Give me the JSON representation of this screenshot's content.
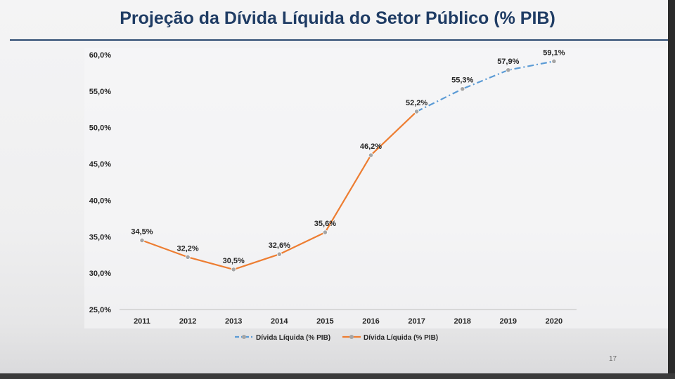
{
  "page": {
    "title": "Projeção da Dívida Líquida do Setor Público (% PIB)",
    "page_number": "17"
  },
  "colors": {
    "projection": "#5b9bd5",
    "actual": "#ed7d31",
    "marker": "#a5a5a5",
    "title": "#1f3c64"
  },
  "chart_data": {
    "type": "line",
    "title": "Projeção da Dívida Líquida do Setor Público (% PIB)",
    "xlabel": "",
    "ylabel": "",
    "ylim": [
      25,
      60
    ],
    "y_ticks": [
      25,
      30,
      35,
      40,
      45,
      50,
      55,
      60
    ],
    "y_tick_labels": [
      "25,0%",
      "30,0%",
      "35,0%",
      "40,0%",
      "45,0%",
      "50,0%",
      "55,0%",
      "60,0%"
    ],
    "categories": [
      "2011",
      "2012",
      "2013",
      "2014",
      "2015",
      "2016",
      "2017",
      "2018",
      "2019",
      "2020"
    ],
    "series": [
      {
        "name": "Dívida Líquida (% PIB)",
        "style": "dash-dot",
        "role": "projection",
        "values": [
          null,
          null,
          null,
          null,
          null,
          null,
          52.2,
          55.3,
          57.9,
          59.1
        ],
        "labels": [
          null,
          null,
          null,
          null,
          null,
          null,
          null,
          "55,3%",
          "57,9%",
          "59,1%"
        ]
      },
      {
        "name": "Dívida Líquida (% PIB)",
        "style": "solid",
        "role": "actual",
        "values": [
          34.5,
          32.2,
          30.5,
          32.6,
          35.6,
          46.2,
          52.2,
          null,
          null,
          null
        ],
        "labels": [
          "34,5%",
          "32,2%",
          "30,5%",
          "32,6%",
          "35,6%",
          "46,2%",
          "52,2%",
          null,
          null,
          null
        ]
      }
    ],
    "legend_position": "bottom"
  }
}
